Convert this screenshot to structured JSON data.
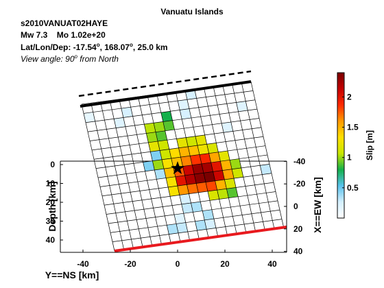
{
  "header": {
    "title": "Vanuatu Islands",
    "event_id": "s2010VANUAT02HAYE",
    "magnitude": "Mw 7.3",
    "moment": "Mo 1.02e+20",
    "location_label": "Lat/Lon/Dep: ",
    "location_parts": [
      "-17.54",
      "o",
      ", 168.07",
      "o",
      ", 25.0 km"
    ],
    "view_angle_label": "View angle:  90",
    "view_angle_sup": "o",
    "view_angle_suffix": " from North"
  },
  "chart_data": {
    "type": "heatmap",
    "title": "Vanuatu Islands",
    "xlabel": "Y==NS [km]",
    "ylabel": "Depth [km]",
    "y2label": "X==EW [km]",
    "colorbar_label": "Slip [m]",
    "x_ticks": [
      -40,
      -20,
      0,
      20,
      40
    ],
    "y_ticks": [
      0,
      10,
      20,
      30,
      40
    ],
    "y2_ticks": [
      -40,
      -20,
      0,
      20,
      40
    ],
    "colorbar_ticks": [
      0.5,
      1,
      1.5,
      2
    ],
    "colorbar_range": [
      0,
      2.4
    ],
    "grid": {
      "rows": 16,
      "cols": 18
    },
    "colormap_stops": [
      "#ffffff",
      "#d4f0ff",
      "#59c2ec",
      "#13b04b",
      "#c8e600",
      "#ffe000",
      "#ff9900",
      "#ff2a00",
      "#c40000",
      "#7a0000"
    ],
    "slip_cells": [
      [
        0,
        11,
        0.25
      ],
      [
        1,
        0,
        0.15
      ],
      [
        1,
        4,
        0.25
      ],
      [
        1,
        10,
        0.2
      ],
      [
        2,
        3,
        0.2
      ],
      [
        2,
        8,
        0.8
      ],
      [
        2,
        10,
        0.25
      ],
      [
        2,
        16,
        0.2
      ],
      [
        3,
        6,
        1.05
      ],
      [
        3,
        7,
        1.0
      ],
      [
        3,
        8,
        0.9
      ],
      [
        4,
        6,
        1.0
      ],
      [
        4,
        7,
        0.9
      ],
      [
        4,
        14,
        0.2
      ],
      [
        5,
        6,
        1.2
      ],
      [
        5,
        7,
        1.1
      ],
      [
        5,
        9,
        1.2
      ],
      [
        5,
        10,
        1.1
      ],
      [
        5,
        11,
        1.2
      ],
      [
        6,
        6,
        0.45
      ],
      [
        6,
        7,
        1.1
      ],
      [
        6,
        8,
        1.35
      ],
      [
        6,
        9,
        1.5
      ],
      [
        6,
        10,
        1.45
      ],
      [
        6,
        11,
        1.25
      ],
      [
        6,
        12,
        1.15
      ],
      [
        7,
        5,
        0.45
      ],
      [
        7,
        6,
        1.0
      ],
      [
        7,
        7,
        1.3
      ],
      [
        7,
        8,
        1.45
      ],
      [
        7,
        9,
        1.65
      ],
      [
        7,
        10,
        1.85
      ],
      [
        7,
        11,
        1.9
      ],
      [
        7,
        12,
        1.55
      ],
      [
        7,
        13,
        1.2
      ],
      [
        8,
        6,
        0.35
      ],
      [
        8,
        7,
        1.45
      ],
      [
        8,
        8,
        1.75
      ],
      [
        8,
        9,
        2.1
      ],
      [
        8,
        10,
        2.3
      ],
      [
        8,
        11,
        2.25
      ],
      [
        8,
        12,
        2.0
      ],
      [
        8,
        13,
        1.5
      ],
      [
        8,
        14,
        1.0
      ],
      [
        9,
        7,
        1.3
      ],
      [
        9,
        8,
        2.0
      ],
      [
        9,
        9,
        2.2
      ],
      [
        9,
        10,
        2.35
      ],
      [
        9,
        11,
        2.4
      ],
      [
        9,
        12,
        2.1
      ],
      [
        9,
        13,
        1.55
      ],
      [
        9,
        14,
        1.1
      ],
      [
        9,
        17,
        0.3
      ],
      [
        10,
        7,
        1.3
      ],
      [
        10,
        8,
        1.6
      ],
      [
        10,
        9,
        1.7
      ],
      [
        10,
        10,
        1.75
      ],
      [
        10,
        11,
        1.8
      ],
      [
        10,
        12,
        1.5
      ],
      [
        10,
        13,
        1.15
      ],
      [
        11,
        8,
        0.25
      ],
      [
        11,
        11,
        1.15
      ],
      [
        11,
        12,
        1.05
      ],
      [
        11,
        13,
        0.9
      ],
      [
        12,
        8,
        0.3
      ],
      [
        12,
        9,
        0.35
      ],
      [
        13,
        7,
        0.2
      ],
      [
        13,
        10,
        0.35
      ],
      [
        14,
        6,
        0.35
      ],
      [
        14,
        7,
        0.3
      ],
      [
        14,
        9,
        0.35
      ],
      [
        14,
        10,
        0.25
      ]
    ],
    "epicenter": {
      "y": 0,
      "depth": 2
    }
  },
  "colors": {
    "trench_solid": "#000000",
    "trench_dashed": "#000000",
    "bottom_edge": "#e8191e",
    "epicenter": "#000000"
  }
}
